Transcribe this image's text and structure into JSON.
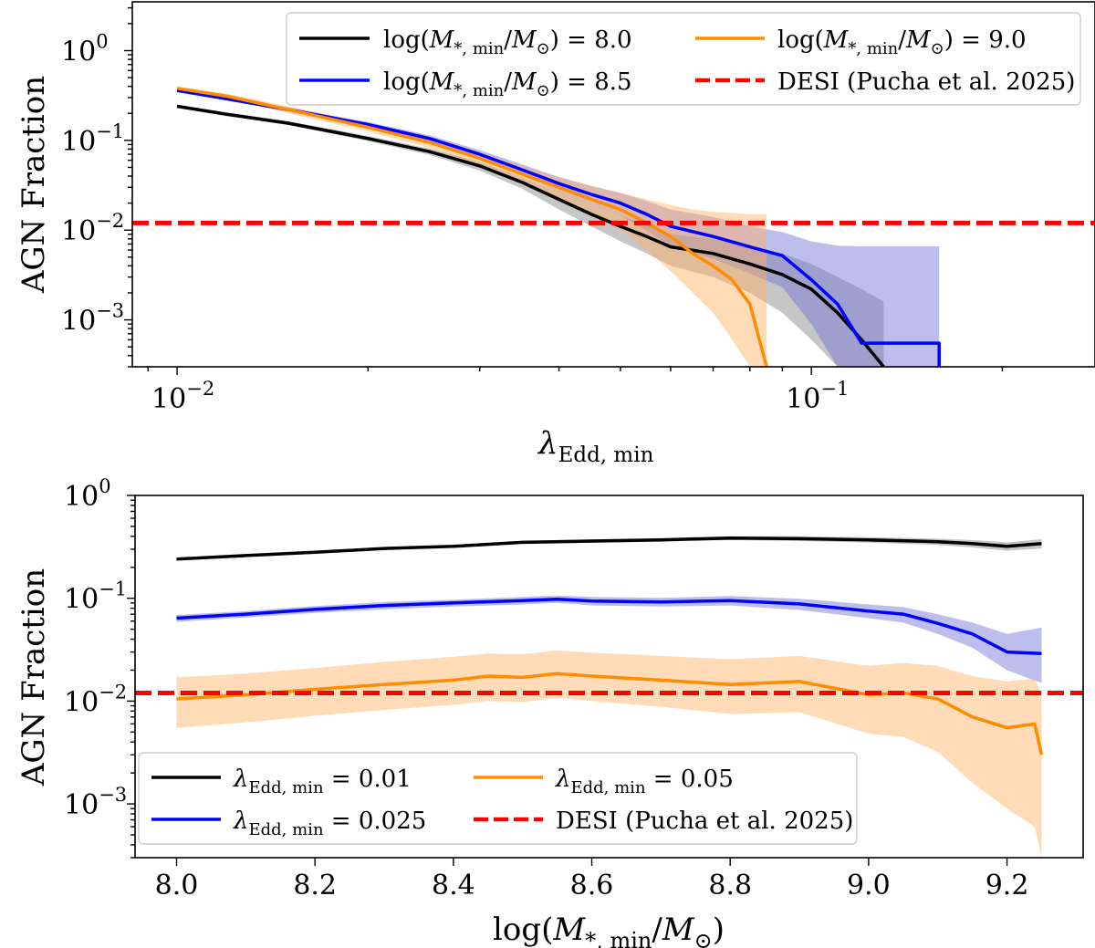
{
  "chart_data": [
    {
      "type": "line",
      "xlabel": "λ_Edd, min",
      "ylabel": "AGN Fraction",
      "xscale": "log",
      "yscale": "log",
      "xlim": [
        0.0085,
        0.28
      ],
      "ylim": [
        0.0003,
        3.5
      ],
      "xticks": [
        {
          "value": 0.01,
          "base": "10",
          "exp": "−2"
        },
        {
          "value": 0.1,
          "base": "10",
          "exp": "−1"
        }
      ],
      "yticks": [
        {
          "value": 1,
          "base": "10",
          "exp": "0"
        },
        {
          "value": 0.1,
          "base": "10",
          "exp": "−1"
        },
        {
          "value": 0.01,
          "base": "10",
          "exp": "−2"
        },
        {
          "value": 0.001,
          "base": "10",
          "exp": "−3"
        }
      ],
      "legend": {
        "position": "top-right",
        "entries": [
          {
            "label": "log(M*,min/M⊙) = 8.0",
            "color": "#000000",
            "style": "solid"
          },
          {
            "label": "log(M*,min/M⊙) = 9.0",
            "color": "#ff8c00",
            "style": "solid"
          },
          {
            "label": "log(M*,min/M⊙) = 8.5",
            "color": "#0000ff",
            "style": "solid"
          },
          {
            "label": "DESI (Pucha et al. 2025)",
            "color": "#ff0000",
            "style": "dashed"
          }
        ]
      },
      "reference_line": {
        "name": "DESI (Pucha et al. 2025)",
        "y": 0.012,
        "color": "#ff0000"
      },
      "series": [
        {
          "name": "log(M*,min/M⊙) = 8.0",
          "color": "#000000",
          "band_color": "#808080",
          "points": [
            [
              0.01,
              0.24
            ],
            [
              0.012,
              0.195
            ],
            [
              0.015,
              0.155
            ],
            [
              0.02,
              0.105
            ],
            [
              0.025,
              0.075
            ],
            [
              0.03,
              0.052
            ],
            [
              0.035,
              0.034
            ],
            [
              0.04,
              0.022
            ],
            [
              0.045,
              0.015
            ],
            [
              0.05,
              0.011
            ],
            [
              0.055,
              0.0085
            ],
            [
              0.06,
              0.0065
            ],
            [
              0.07,
              0.0055
            ],
            [
              0.08,
              0.0042
            ],
            [
              0.09,
              0.0032
            ],
            [
              0.1,
              0.0022
            ],
            [
              0.11,
              0.0012
            ],
            [
              0.12,
              0.0006
            ],
            [
              0.13,
              0.0003
            ]
          ],
          "lower": [
            0.23,
            0.185,
            0.148,
            0.098,
            0.069,
            0.046,
            0.029,
            0.017,
            0.011,
            0.0075,
            0.0055,
            0.004,
            0.003,
            0.002,
            0.0012,
            0.0006,
            0.0003,
            0.0003,
            0.0003
          ],
          "upper": [
            0.25,
            0.205,
            0.163,
            0.112,
            0.081,
            0.058,
            0.039,
            0.027,
            0.019,
            0.0145,
            0.0115,
            0.009,
            0.008,
            0.0065,
            0.0055,
            0.0042,
            0.003,
            0.0022,
            0.0016
          ]
        },
        {
          "name": "log(M*,min/M⊙) = 8.5",
          "color": "#0000ff",
          "band_color": "#6e6ed8",
          "points": [
            [
              0.01,
              0.36
            ],
            [
              0.012,
              0.29
            ],
            [
              0.015,
              0.22
            ],
            [
              0.02,
              0.15
            ],
            [
              0.025,
              0.105
            ],
            [
              0.03,
              0.07
            ],
            [
              0.035,
              0.047
            ],
            [
              0.04,
              0.033
            ],
            [
              0.045,
              0.025
            ],
            [
              0.05,
              0.02
            ],
            [
              0.055,
              0.015
            ],
            [
              0.06,
              0.011
            ],
            [
              0.07,
              0.0085
            ],
            [
              0.08,
              0.0065
            ],
            [
              0.09,
              0.0052
            ],
            [
              0.1,
              0.0028
            ],
            [
              0.11,
              0.0015
            ],
            [
              0.12,
              0.00055
            ],
            [
              0.159,
              0.00055
            ],
            [
              0.159,
              0.0003
            ]
          ],
          "lower": [
            0.345,
            0.277,
            0.208,
            0.14,
            0.096,
            0.062,
            0.04,
            0.027,
            0.019,
            0.0145,
            0.01,
            0.0065,
            0.0048,
            0.0033,
            0.0023,
            0.0009,
            0.0003,
            0.0003,
            0.0003,
            0.0003
          ],
          "upper": [
            0.375,
            0.303,
            0.232,
            0.16,
            0.114,
            0.078,
            0.054,
            0.039,
            0.031,
            0.026,
            0.021,
            0.017,
            0.014,
            0.011,
            0.0095,
            0.0075,
            0.0067,
            0.0066,
            0.0066,
            0.0066
          ]
        },
        {
          "name": "log(M*,min/M⊙) = 9.0",
          "color": "#ff8c00",
          "band_color": "#ffb060",
          "points": [
            [
              0.01,
              0.38
            ],
            [
              0.012,
              0.31
            ],
            [
              0.015,
              0.22
            ],
            [
              0.02,
              0.14
            ],
            [
              0.025,
              0.095
            ],
            [
              0.03,
              0.063
            ],
            [
              0.035,
              0.042
            ],
            [
              0.04,
              0.03
            ],
            [
              0.045,
              0.022
            ],
            [
              0.05,
              0.017
            ],
            [
              0.055,
              0.012
            ],
            [
              0.06,
              0.0085
            ],
            [
              0.065,
              0.0055
            ],
            [
              0.07,
              0.004
            ],
            [
              0.075,
              0.0028
            ],
            [
              0.08,
              0.0015
            ],
            [
              0.085,
              0.0003
            ]
          ],
          "lower": [
            0.36,
            0.29,
            0.2,
            0.125,
            0.082,
            0.052,
            0.033,
            0.022,
            0.015,
            0.01,
            0.006,
            0.0035,
            0.002,
            0.0012,
            0.0006,
            0.0003,
            0.0003
          ],
          "upper": [
            0.4,
            0.33,
            0.24,
            0.155,
            0.108,
            0.074,
            0.052,
            0.039,
            0.031,
            0.026,
            0.022,
            0.019,
            0.017,
            0.016,
            0.0155,
            0.015,
            0.015
          ]
        }
      ]
    },
    {
      "type": "line",
      "xlabel": "log(M*,min/M⊙)",
      "ylabel": "AGN Fraction",
      "xscale": "linear",
      "yscale": "log",
      "xlim": [
        7.94,
        9.31
      ],
      "ylim": [
        0.0003,
        1.0
      ],
      "xticks": [
        {
          "value": 8.0,
          "label": "8.0"
        },
        {
          "value": 8.2,
          "label": "8.2"
        },
        {
          "value": 8.4,
          "label": "8.4"
        },
        {
          "value": 8.6,
          "label": "8.6"
        },
        {
          "value": 8.8,
          "label": "8.8"
        },
        {
          "value": 9.0,
          "label": "9.0"
        },
        {
          "value": 9.2,
          "label": "9.2"
        }
      ],
      "yticks": [
        {
          "value": 1,
          "base": "10",
          "exp": "0"
        },
        {
          "value": 0.1,
          "base": "10",
          "exp": "−1"
        },
        {
          "value": 0.01,
          "base": "10",
          "exp": "−2"
        },
        {
          "value": 0.001,
          "base": "10",
          "exp": "−3"
        }
      ],
      "legend": {
        "position": "bottom-left",
        "entries": [
          {
            "label": "λEdd,min = 0.01",
            "color": "#000000",
            "style": "solid"
          },
          {
            "label": "λEdd,min = 0.05",
            "color": "#ff8c00",
            "style": "solid"
          },
          {
            "label": "λEdd,min = 0.025",
            "color": "#0000ff",
            "style": "solid"
          },
          {
            "label": "DESI (Pucha et al. 2025)",
            "color": "#ff0000",
            "style": "dashed"
          }
        ]
      },
      "reference_line": {
        "name": "DESI (Pucha et al. 2025)",
        "y": 0.012,
        "color": "#ff0000"
      },
      "series": [
        {
          "name": "λEdd,min = 0.01",
          "color": "#000000",
          "band_color": "#808080",
          "points": [
            [
              8.0,
              0.24
            ],
            [
              8.1,
              0.26
            ],
            [
              8.2,
              0.28
            ],
            [
              8.3,
              0.305
            ],
            [
              8.4,
              0.32
            ],
            [
              8.5,
              0.35
            ],
            [
              8.6,
              0.36
            ],
            [
              8.7,
              0.37
            ],
            [
              8.8,
              0.385
            ],
            [
              8.9,
              0.38
            ],
            [
              9.0,
              0.37
            ],
            [
              9.1,
              0.355
            ],
            [
              9.15,
              0.34
            ],
            [
              9.2,
              0.32
            ],
            [
              9.25,
              0.34
            ]
          ],
          "lower": [
            0.232,
            0.252,
            0.272,
            0.296,
            0.31,
            0.338,
            0.346,
            0.355,
            0.368,
            0.36,
            0.348,
            0.33,
            0.312,
            0.29,
            0.305
          ],
          "upper": [
            0.248,
            0.268,
            0.288,
            0.314,
            0.33,
            0.362,
            0.374,
            0.385,
            0.402,
            0.4,
            0.392,
            0.38,
            0.368,
            0.35,
            0.375
          ]
        },
        {
          "name": "λEdd,min = 0.025",
          "color": "#0000ff",
          "band_color": "#6e6ed8",
          "points": [
            [
              8.0,
              0.064
            ],
            [
              8.1,
              0.07
            ],
            [
              8.2,
              0.078
            ],
            [
              8.3,
              0.085
            ],
            [
              8.4,
              0.09
            ],
            [
              8.5,
              0.095
            ],
            [
              8.55,
              0.098
            ],
            [
              8.6,
              0.094
            ],
            [
              8.7,
              0.092
            ],
            [
              8.8,
              0.095
            ],
            [
              8.9,
              0.088
            ],
            [
              9.0,
              0.075
            ],
            [
              9.05,
              0.07
            ],
            [
              9.1,
              0.057
            ],
            [
              9.15,
              0.045
            ],
            [
              9.2,
              0.03
            ],
            [
              9.25,
              0.029
            ]
          ],
          "lower": [
            0.059,
            0.065,
            0.072,
            0.078,
            0.083,
            0.087,
            0.09,
            0.085,
            0.083,
            0.085,
            0.077,
            0.064,
            0.058,
            0.045,
            0.033,
            0.02,
            0.015
          ],
          "upper": [
            0.069,
            0.075,
            0.084,
            0.092,
            0.097,
            0.103,
            0.106,
            0.103,
            0.101,
            0.105,
            0.099,
            0.087,
            0.082,
            0.07,
            0.058,
            0.045,
            0.052
          ]
        },
        {
          "name": "λEdd,min = 0.05",
          "color": "#ff8c00",
          "band_color": "#ffb060",
          "points": [
            [
              8.0,
              0.0105
            ],
            [
              8.1,
              0.0115
            ],
            [
              8.2,
              0.013
            ],
            [
              8.3,
              0.0145
            ],
            [
              8.4,
              0.016
            ],
            [
              8.45,
              0.0175
            ],
            [
              8.5,
              0.017
            ],
            [
              8.55,
              0.0185
            ],
            [
              8.6,
              0.0175
            ],
            [
              8.7,
              0.016
            ],
            [
              8.8,
              0.0145
            ],
            [
              8.9,
              0.0155
            ],
            [
              9.0,
              0.0115
            ],
            [
              9.05,
              0.012
            ],
            [
              9.1,
              0.0105
            ],
            [
              9.15,
              0.007
            ],
            [
              9.2,
              0.0055
            ],
            [
              9.24,
              0.006
            ],
            [
              9.25,
              0.003
            ]
          ],
          "lower": [
            0.0055,
            0.0062,
            0.0072,
            0.0082,
            0.0092,
            0.01,
            0.0098,
            0.0108,
            0.01,
            0.0088,
            0.0075,
            0.0078,
            0.0048,
            0.0045,
            0.0032,
            0.0016,
            0.0009,
            0.0006,
            0.0003
          ],
          "upper": [
            0.017,
            0.0185,
            0.021,
            0.024,
            0.027,
            0.029,
            0.0285,
            0.031,
            0.0295,
            0.0275,
            0.0255,
            0.0275,
            0.022,
            0.0235,
            0.022,
            0.0175,
            0.0155,
            0.0165,
            0.0115
          ]
        }
      ]
    }
  ]
}
